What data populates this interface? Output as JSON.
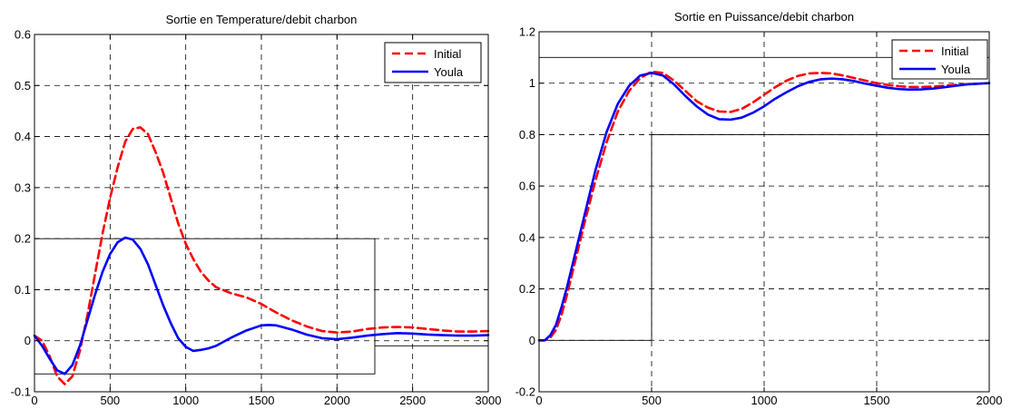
{
  "chart_data": [
    {
      "type": "line",
      "title": "Sortie en Temperature/debit charbon",
      "xlim": [
        0,
        3000
      ],
      "ylim": [
        -0.1,
        0.6
      ],
      "xticks": [
        0,
        500,
        1000,
        1500,
        2000,
        2500,
        3000
      ],
      "yticks": [
        -0.1,
        0,
        0.1,
        0.2,
        0.3,
        0.4,
        0.5,
        0.6
      ],
      "xtick_labels": [
        "0",
        "500",
        "1000",
        "1500",
        "2000",
        "2500",
        "3000"
      ],
      "ytick_labels": [
        "-0.1",
        "0",
        "0.1",
        "0.2",
        "0.3",
        "0.4",
        "0.5",
        "0.6"
      ],
      "grid": true,
      "legend_position": "top-right",
      "series": [
        {
          "name": "Initial",
          "color": "#ff0000",
          "style": "dashed",
          "x": [
            0,
            50,
            100,
            150,
            200,
            250,
            300,
            350,
            400,
            450,
            500,
            550,
            600,
            650,
            700,
            750,
            800,
            850,
            900,
            950,
            1000,
            1050,
            1100,
            1150,
            1200,
            1300,
            1400,
            1500,
            1600,
            1700,
            1800,
            1900,
            2000,
            2100,
            2200,
            2300,
            2400,
            2500,
            2600,
            2700,
            2800,
            2900,
            3000
          ],
          "y": [
            0.01,
            0.0,
            -0.03,
            -0.07,
            -0.085,
            -0.07,
            -0.02,
            0.05,
            0.13,
            0.21,
            0.28,
            0.34,
            0.39,
            0.415,
            0.418,
            0.405,
            0.37,
            0.33,
            0.28,
            0.23,
            0.19,
            0.16,
            0.135,
            0.118,
            0.105,
            0.093,
            0.085,
            0.072,
            0.055,
            0.04,
            0.028,
            0.019,
            0.016,
            0.018,
            0.023,
            0.026,
            0.027,
            0.026,
            0.023,
            0.02,
            0.018,
            0.018,
            0.019
          ]
        },
        {
          "name": "Youla",
          "color": "#0000ff",
          "style": "solid",
          "x": [
            0,
            50,
            100,
            150,
            200,
            250,
            300,
            350,
            400,
            450,
            500,
            550,
            600,
            650,
            700,
            750,
            800,
            850,
            900,
            950,
            1000,
            1050,
            1100,
            1150,
            1200,
            1300,
            1400,
            1500,
            1550,
            1600,
            1700,
            1800,
            1900,
            2000,
            2100,
            2200,
            2300,
            2400,
            2500,
            2600,
            2700,
            2800,
            2900,
            3000
          ],
          "y": [
            0.01,
            -0.01,
            -0.035,
            -0.058,
            -0.065,
            -0.048,
            -0.01,
            0.04,
            0.09,
            0.135,
            0.17,
            0.193,
            0.202,
            0.198,
            0.18,
            0.15,
            0.11,
            0.07,
            0.035,
            0.005,
            -0.012,
            -0.02,
            -0.018,
            -0.015,
            -0.01,
            0.006,
            0.02,
            0.03,
            0.031,
            0.03,
            0.022,
            0.012,
            0.005,
            0.003,
            0.006,
            0.01,
            0.013,
            0.015,
            0.014,
            0.012,
            0.011,
            0.01,
            0.01,
            0.011
          ]
        }
      ],
      "bounds": {
        "upper": {
          "x": [
            0,
            2250,
            2250
          ],
          "y": [
            0.2,
            0.2,
            -0.01
          ]
        },
        "lower": {
          "x": [
            0,
            2250,
            2250,
            3000
          ],
          "y": [
            -0.065,
            -0.065,
            -0.01,
            -0.01
          ]
        }
      }
    },
    {
      "type": "line",
      "title": "Sortie en Puissance/debit charbon",
      "xlim": [
        0,
        2000
      ],
      "ylim": [
        -0.2,
        1.2
      ],
      "xticks": [
        0,
        500,
        1000,
        1500,
        2000
      ],
      "yticks": [
        -0.2,
        0,
        0.2,
        0.4,
        0.6,
        0.8,
        1,
        1.2
      ],
      "xtick_labels": [
        "0",
        "500",
        "1000",
        "1500",
        "2000"
      ],
      "ytick_labels": [
        "-0.2",
        "0",
        "0.2",
        "0.4",
        "0.6",
        "0.8",
        "1",
        "1.2"
      ],
      "grid": true,
      "legend_position": "top-right",
      "series": [
        {
          "name": "Initial",
          "color": "#ff0000",
          "style": "dashed",
          "x": [
            0,
            25,
            50,
            75,
            100,
            125,
            150,
            175,
            200,
            250,
            300,
            350,
            400,
            450,
            500,
            550,
            600,
            650,
            700,
            750,
            800,
            850,
            900,
            950,
            1000,
            1050,
            1100,
            1150,
            1200,
            1250,
            1300,
            1350,
            1400,
            1450,
            1500,
            1550,
            1600,
            1650,
            1700,
            1750,
            1800,
            1850,
            1900,
            1950,
            2000
          ],
          "y": [
            0.0,
            0.0,
            0.01,
            0.04,
            0.1,
            0.18,
            0.27,
            0.36,
            0.45,
            0.62,
            0.77,
            0.89,
            0.97,
            1.02,
            1.045,
            1.04,
            1.01,
            0.97,
            0.93,
            0.905,
            0.89,
            0.888,
            0.9,
            0.925,
            0.955,
            0.985,
            1.01,
            1.028,
            1.038,
            1.04,
            1.038,
            1.03,
            1.02,
            1.01,
            1.0,
            0.993,
            0.988,
            0.985,
            0.985,
            0.987,
            0.99,
            0.993,
            0.996,
            0.998,
            1.0
          ]
        },
        {
          "name": "Youla",
          "color": "#0000ff",
          "style": "solid",
          "x": [
            0,
            25,
            50,
            75,
            100,
            125,
            150,
            175,
            200,
            250,
            300,
            350,
            400,
            450,
            500,
            550,
            600,
            650,
            700,
            750,
            800,
            850,
            900,
            950,
            1000,
            1050,
            1100,
            1150,
            1200,
            1250,
            1300,
            1350,
            1400,
            1450,
            1500,
            1550,
            1600,
            1650,
            1700,
            1750,
            1800,
            1850,
            1900,
            1950,
            2000
          ],
          "y": [
            0.0,
            0.0,
            0.02,
            0.06,
            0.13,
            0.21,
            0.3,
            0.39,
            0.48,
            0.66,
            0.81,
            0.92,
            0.99,
            1.03,
            1.04,
            1.03,
            0.995,
            0.95,
            0.91,
            0.878,
            0.86,
            0.858,
            0.866,
            0.885,
            0.91,
            0.94,
            0.965,
            0.988,
            1.005,
            1.015,
            1.018,
            1.015,
            1.008,
            0.998,
            0.99,
            0.982,
            0.977,
            0.975,
            0.976,
            0.979,
            0.984,
            0.99,
            0.995,
            0.998,
            1.0
          ]
        }
      ],
      "bounds": {
        "upper": {
          "x": [
            0,
            2000
          ],
          "y": [
            1.1,
            1.1
          ]
        },
        "lower": {
          "x": [
            0,
            500,
            500,
            2000
          ],
          "y": [
            0,
            0,
            0.8,
            0.8
          ]
        }
      }
    }
  ]
}
